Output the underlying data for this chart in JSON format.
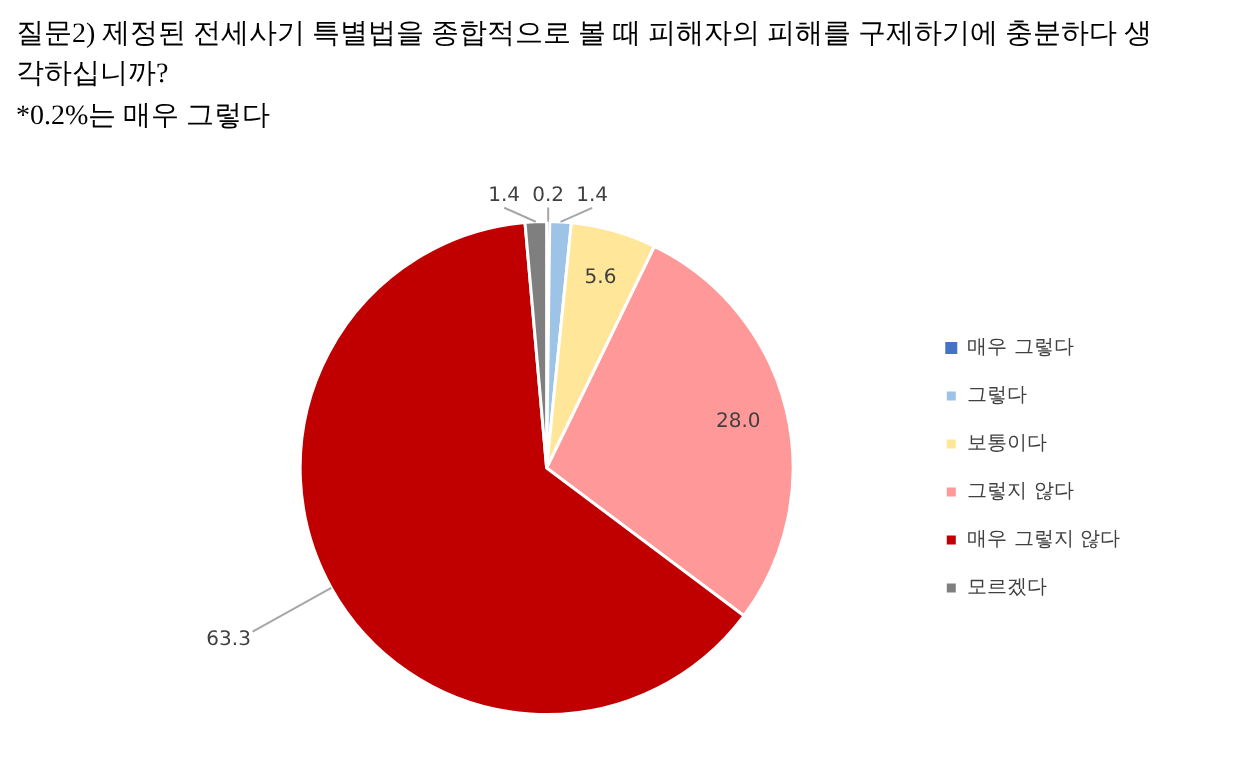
{
  "chart_data": {
    "type": "pie",
    "title": "질문2) 제정된 전세사기 특별법을 종합적으로 볼 때 피해자의 피해를 구제하기에 충분하다 생각하십니까?",
    "subtitle": "*0.2%는 매우 그렇다",
    "categories": [
      "매우 그렇다",
      "그렇다",
      "보통이다",
      "그렇지 않다",
      "매우 그렇지 않다",
      "모르겠다"
    ],
    "values": [
      0.2,
      1.4,
      5.6,
      28.0,
      63.3,
      1.4
    ],
    "colors": [
      "#4472c4",
      "#9dc3e6",
      "#ffe699",
      "#ff9999",
      "#c00000",
      "#7f7f7f"
    ],
    "value_labels": [
      "0.2",
      "1.4",
      "5.6",
      "28.0",
      "63.3",
      "1.4"
    ],
    "legend": "right"
  }
}
